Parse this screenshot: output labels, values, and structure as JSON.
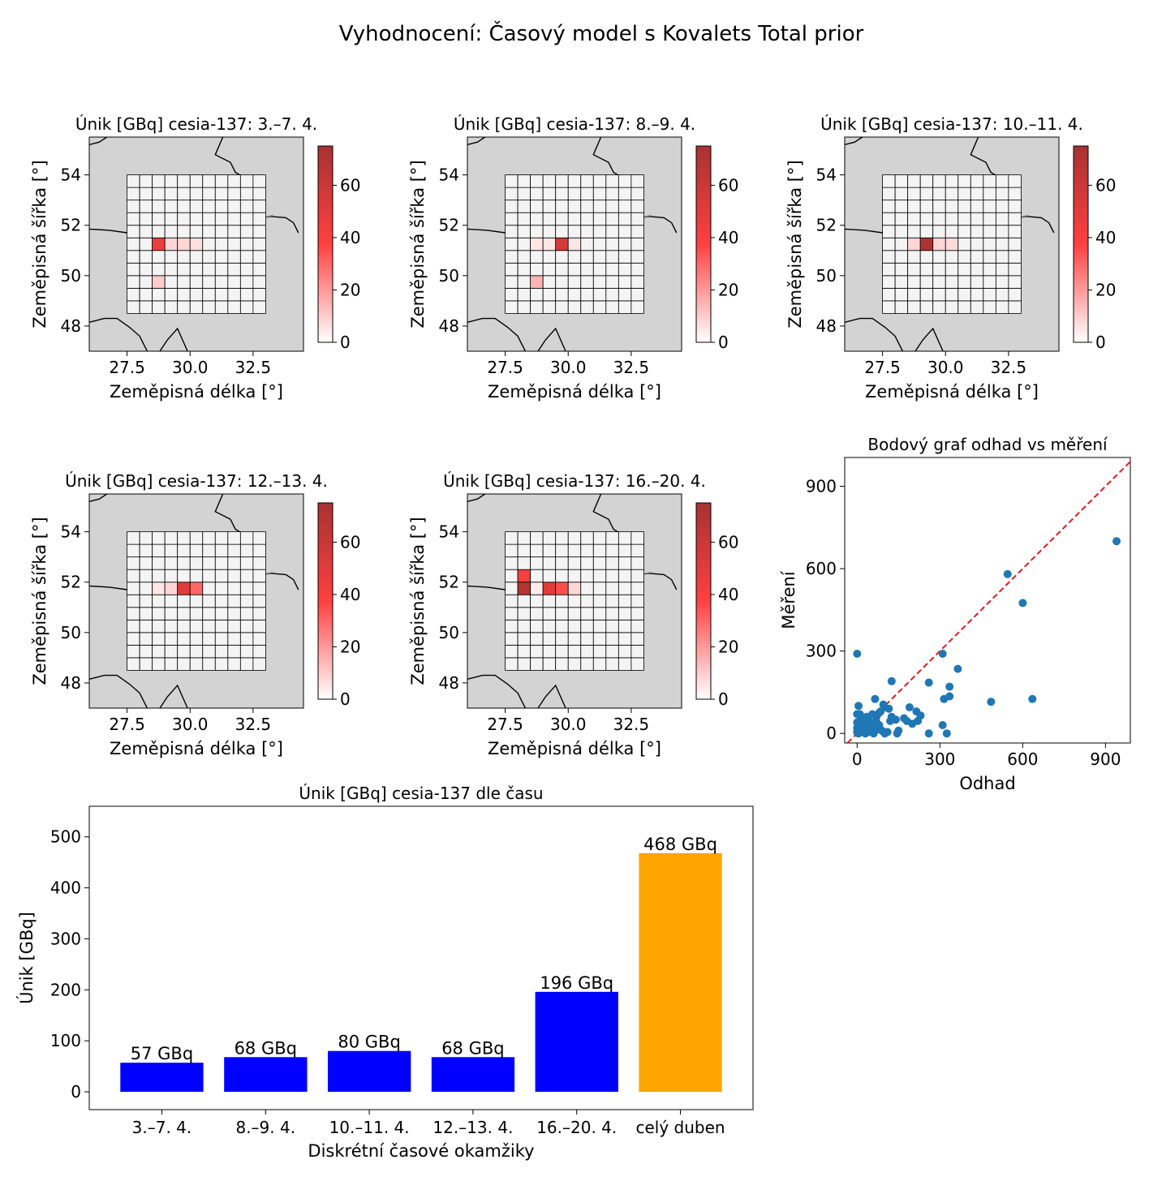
{
  "figure_title": "Vyhodnocení: Časový model s Kovalets Total prior",
  "map_axes": {
    "xlabel": "Zeměpisná délka [°]",
    "ylabel": "Zeměpisná šířka [°]",
    "xlim": [
      26.0,
      34.5
    ],
    "ylim": [
      47.0,
      55.5
    ],
    "xticks": [
      "27.5",
      "30.0",
      "32.5"
    ],
    "yticks": [
      "48",
      "50",
      "52",
      "54"
    ],
    "colorbar_ticks": [
      "0",
      "20",
      "40",
      "60"
    ],
    "colorbar_range": [
      0,
      75
    ],
    "grid_x_range": [
      27.5,
      33.0
    ],
    "grid_y_range": [
      48.5,
      54.0
    ],
    "grid_cols": 11,
    "grid_rows": 11
  },
  "colors": {
    "land": "#d3d3d3",
    "grid_cell": "#f4f4f4",
    "bar_blue": "#0000ff",
    "bar_orange": "#ffa500",
    "scatter": "#1f77b4",
    "diag": "#e41a1c"
  },
  "chart_data": [
    {
      "type": "heatmap",
      "title": "Únik [GBq] cesia-137: 3.–7. 4.",
      "cells": [
        {
          "col": 2,
          "row": 5,
          "value": 45
        },
        {
          "col": 3,
          "row": 5,
          "value": 8
        },
        {
          "col": 4,
          "row": 5,
          "value": 8
        },
        {
          "col": 5,
          "row": 5,
          "value": 6
        },
        {
          "col": 2,
          "row": 2,
          "value": 10
        }
      ]
    },
    {
      "type": "heatmap",
      "title": "Únik [GBq] cesia-137: 8.–9. 4.",
      "cells": [
        {
          "col": 4,
          "row": 5,
          "value": 55
        },
        {
          "col": 2,
          "row": 5,
          "value": 5
        },
        {
          "col": 3,
          "row": 5,
          "value": 5
        },
        {
          "col": 5,
          "row": 5,
          "value": 5
        },
        {
          "col": 2,
          "row": 2,
          "value": 15
        }
      ]
    },
    {
      "type": "heatmap",
      "title": "Únik [GBq] cesia-137: 10.–11. 4.",
      "cells": [
        {
          "col": 3,
          "row": 5,
          "value": 72
        },
        {
          "col": 2,
          "row": 5,
          "value": 8
        },
        {
          "col": 4,
          "row": 5,
          "value": 8
        },
        {
          "col": 5,
          "row": 5,
          "value": 7
        }
      ]
    },
    {
      "type": "heatmap",
      "title": "Únik [GBq] cesia-137: 12.–13. 4.",
      "cells": [
        {
          "col": 4,
          "row": 6,
          "value": 50
        },
        {
          "col": 5,
          "row": 6,
          "value": 30
        },
        {
          "col": 2,
          "row": 6,
          "value": 5
        },
        {
          "col": 3,
          "row": 6,
          "value": 8
        }
      ]
    },
    {
      "type": "heatmap",
      "title": "Únik [GBq] cesia-137: 16.–20. 4.",
      "cells": [
        {
          "col": 1,
          "row": 7,
          "value": 40
        },
        {
          "col": 1,
          "row": 6,
          "value": 70
        },
        {
          "col": 3,
          "row": 6,
          "value": 50
        },
        {
          "col": 4,
          "row": 6,
          "value": 35
        },
        {
          "col": 5,
          "row": 6,
          "value": 8
        },
        {
          "col": 2,
          "row": 6,
          "value": 4
        }
      ]
    },
    {
      "type": "scatter",
      "title": "Bodový graf odhad vs měření",
      "xlabel": "Odhad",
      "ylabel": "Měření",
      "xlim": [
        -45,
        990
      ],
      "ylim": [
        -35,
        1005
      ],
      "xticks": [
        "0",
        "300",
        "600",
        "900"
      ],
      "yticks": [
        "0",
        "300",
        "600",
        "900"
      ],
      "points": [
        [
          940,
          700
        ],
        [
          545,
          580
        ],
        [
          600,
          475
        ],
        [
          635,
          125
        ],
        [
          485,
          115
        ],
        [
          310,
          290
        ],
        [
          365,
          235
        ],
        [
          335,
          170
        ],
        [
          335,
          135
        ],
        [
          315,
          125
        ],
        [
          260,
          185
        ],
        [
          310,
          30
        ],
        [
          325,
          0
        ],
        [
          260,
          0
        ],
        [
          230,
          65
        ],
        [
          220,
          45
        ],
        [
          215,
          80
        ],
        [
          190,
          95
        ],
        [
          180,
          45
        ],
        [
          170,
          55
        ],
        [
          200,
          35
        ],
        [
          125,
          190
        ],
        [
          125,
          60
        ],
        [
          140,
          50
        ],
        [
          120,
          45
        ],
        [
          115,
          90
        ],
        [
          100,
          95
        ],
        [
          95,
          105
        ],
        [
          85,
          80
        ],
        [
          80,
          75
        ],
        [
          65,
          125
        ],
        [
          70,
          60
        ],
        [
          55,
          70
        ],
        [
          50,
          40
        ],
        [
          45,
          35
        ],
        [
          40,
          50
        ],
        [
          35,
          20
        ],
        [
          30,
          30
        ],
        [
          25,
          15
        ],
        [
          20,
          45
        ],
        [
          15,
          60
        ],
        [
          10,
          70
        ],
        [
          5,
          100
        ],
        [
          0,
          290
        ],
        [
          0,
          70
        ],
        [
          0,
          40
        ],
        [
          0,
          20
        ],
        [
          0,
          5
        ],
        [
          5,
          0
        ],
        [
          10,
          10
        ],
        [
          20,
          5
        ],
        [
          30,
          0
        ],
        [
          40,
          5
        ],
        [
          50,
          15
        ],
        [
          60,
          25
        ],
        [
          75,
          15
        ],
        [
          90,
          10
        ],
        [
          100,
          0
        ],
        [
          110,
          5
        ],
        [
          145,
          0
        ],
        [
          150,
          10
        ],
        [
          60,
          0
        ],
        [
          70,
          40
        ],
        [
          80,
          30
        ],
        [
          20,
          25
        ],
        [
          10,
          35
        ],
        [
          45,
          10
        ],
        [
          35,
          60
        ]
      ]
    },
    {
      "type": "bar",
      "title": "Únik [GBq] cesia-137 dle času",
      "xlabel": "Diskrétní časové okamžiky",
      "ylabel": "Únik [GBq]",
      "categories": [
        "3.–7. 4.",
        "8.–9. 4.",
        "10.–11. 4.",
        "12.–13. 4.",
        "16.–20. 4.",
        "celý duben"
      ],
      "values": [
        57,
        68,
        80,
        68,
        196,
        468
      ],
      "labels": [
        "57 GBq",
        "68 GBq",
        "80 GBq",
        "68 GBq",
        "196 GBq",
        "468 GBq"
      ],
      "yticks": [
        "0",
        "100",
        "200",
        "300",
        "400",
        "500"
      ],
      "ylim": [
        -35,
        560
      ]
    }
  ]
}
